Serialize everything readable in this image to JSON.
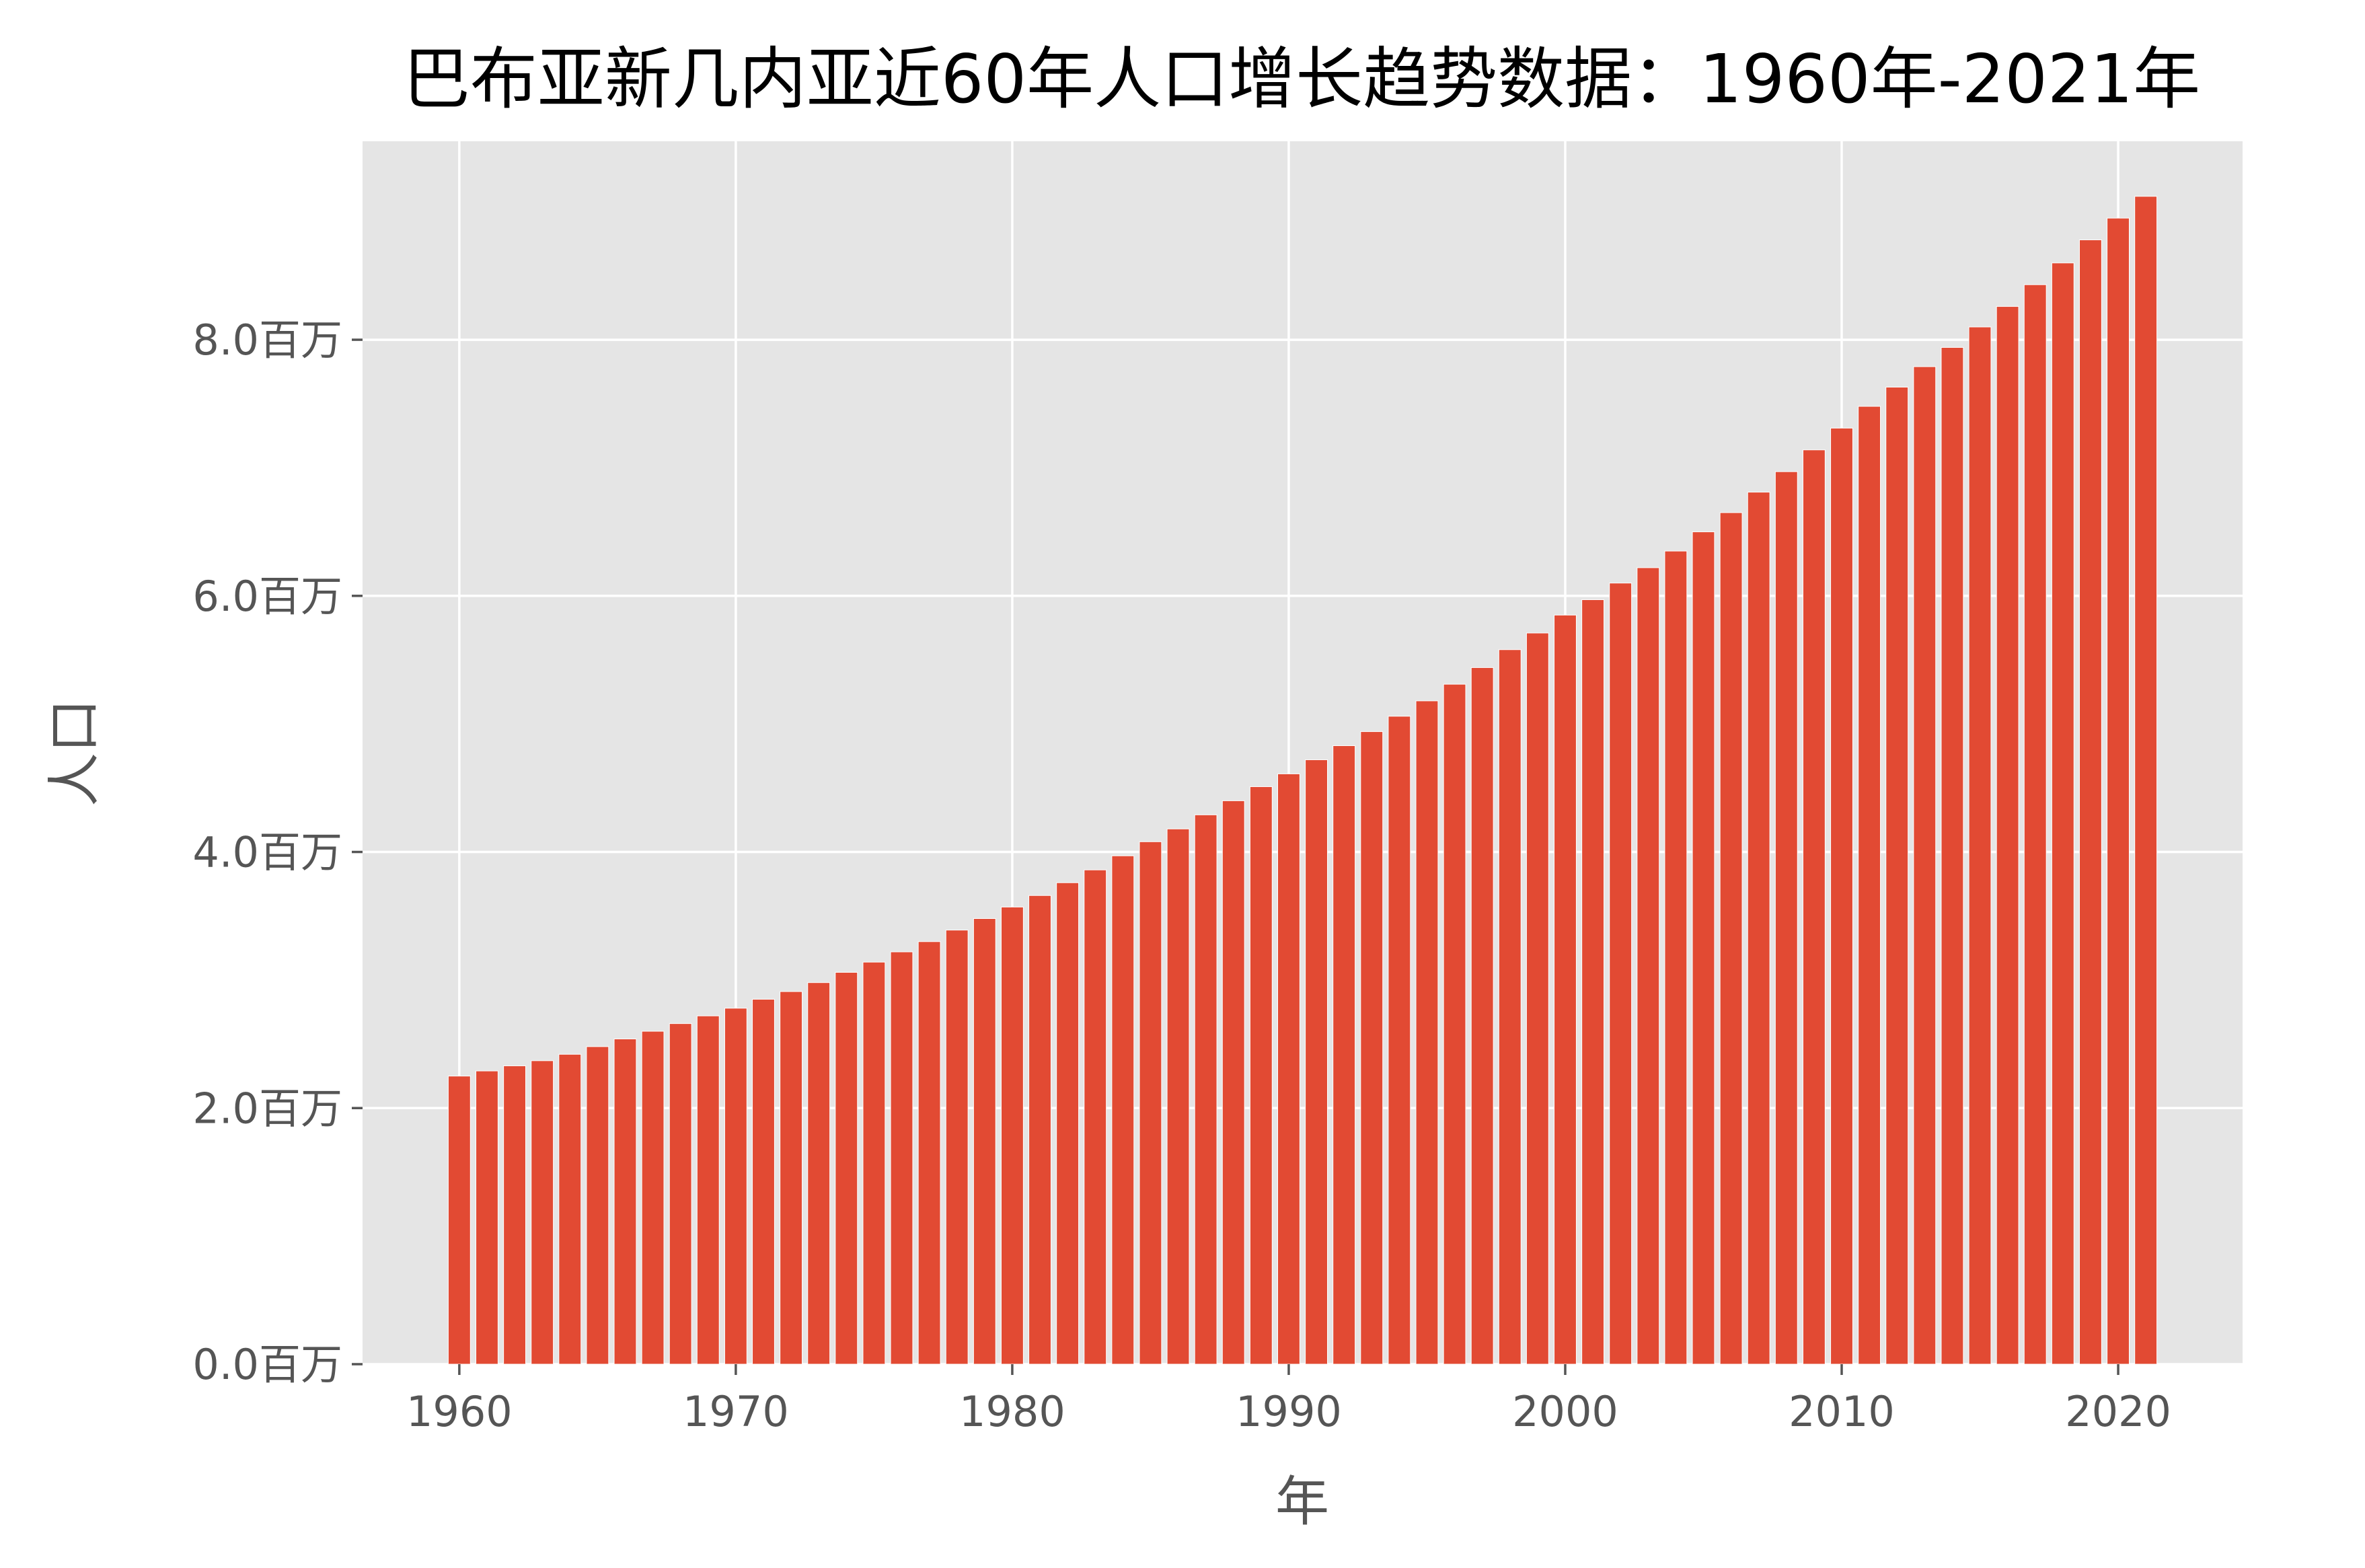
{
  "chart_data": {
    "type": "bar",
    "title": "巴布亚新几内亚近60年人口增长趋势数据：1960年-2021年",
    "xlabel": "年",
    "ylabel": "人口",
    "y_unit_suffix": "百万",
    "xlim": [
      1956.5,
      2024.5
    ],
    "ylim": [
      0,
      9.55
    ],
    "x_ticks": [
      1960,
      1970,
      1980,
      1990,
      2000,
      2010,
      2020
    ],
    "y_ticks": [
      0,
      2,
      4,
      6,
      8
    ],
    "y_tick_labels": [
      "0.0百万",
      "2.0百万",
      "4.0百万",
      "6.0百万",
      "8.0百万"
    ],
    "grid": true,
    "bar_color": "#e24a33",
    "background_color": "#e5e5e5",
    "categories": [
      1960,
      1961,
      1962,
      1963,
      1964,
      1965,
      1966,
      1967,
      1968,
      1969,
      1970,
      1971,
      1972,
      1973,
      1974,
      1975,
      1976,
      1977,
      1978,
      1979,
      1980,
      1981,
      1982,
      1983,
      1984,
      1985,
      1986,
      1987,
      1988,
      1989,
      1990,
      1991,
      1992,
      1993,
      1994,
      1995,
      1996,
      1997,
      1998,
      1999,
      2000,
      2001,
      2002,
      2003,
      2004,
      2005,
      2006,
      2007,
      2008,
      2009,
      2010,
      2011,
      2012,
      2013,
      2014,
      2015,
      2016,
      2017,
      2018,
      2019,
      2020,
      2021
    ],
    "values": [
      2.25,
      2.29,
      2.33,
      2.37,
      2.42,
      2.48,
      2.54,
      2.6,
      2.66,
      2.72,
      2.78,
      2.85,
      2.91,
      2.98,
      3.06,
      3.14,
      3.22,
      3.3,
      3.39,
      3.48,
      3.57,
      3.66,
      3.76,
      3.86,
      3.97,
      4.08,
      4.18,
      4.29,
      4.4,
      4.51,
      4.61,
      4.72,
      4.83,
      4.94,
      5.06,
      5.18,
      5.31,
      5.44,
      5.58,
      5.71,
      5.85,
      5.97,
      6.1,
      6.22,
      6.35,
      6.5,
      6.65,
      6.81,
      6.97,
      7.14,
      7.31,
      7.48,
      7.63,
      7.79,
      7.94,
      8.1,
      8.26,
      8.43,
      8.6,
      8.78,
      8.95,
      9.12
    ]
  }
}
